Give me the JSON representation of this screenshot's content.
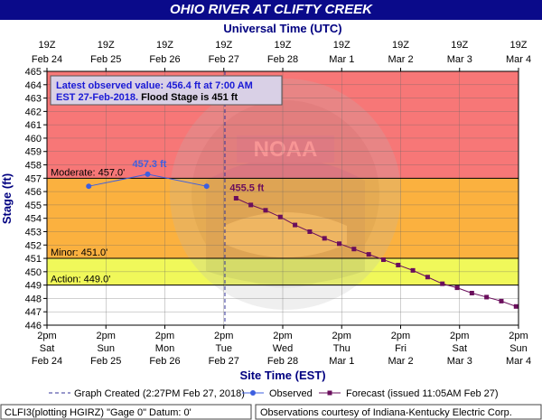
{
  "header": {
    "title": "OHIO RIVER AT CLIFTY CREEK"
  },
  "top_axis": {
    "title": "Universal Time (UTC)",
    "ticks": [
      {
        "time": "19Z",
        "date": "Feb 24"
      },
      {
        "time": "19Z",
        "date": "Feb 25"
      },
      {
        "time": "19Z",
        "date": "Feb 26"
      },
      {
        "time": "19Z",
        "date": "Feb 27"
      },
      {
        "time": "19Z",
        "date": "Feb 28"
      },
      {
        "time": "19Z",
        "date": "Mar 1"
      },
      {
        "time": "19Z",
        "date": "Mar 2"
      },
      {
        "time": "19Z",
        "date": "Mar 3"
      },
      {
        "time": "19Z",
        "date": "Mar 4"
      }
    ]
  },
  "bottom_axis": {
    "title": "Site Time (EST)",
    "ticks": [
      {
        "time": "2pm",
        "day": "Sat",
        "date": "Feb 24"
      },
      {
        "time": "2pm",
        "day": "Sun",
        "date": "Feb 25"
      },
      {
        "time": "2pm",
        "day": "Mon",
        "date": "Feb 26"
      },
      {
        "time": "2pm",
        "day": "Tue",
        "date": "Feb 27"
      },
      {
        "time": "2pm",
        "day": "Wed",
        "date": "Feb 28"
      },
      {
        "time": "2pm",
        "day": "Thu",
        "date": "Mar 1"
      },
      {
        "time": "2pm",
        "day": "Fri",
        "date": "Mar 2"
      },
      {
        "time": "2pm",
        "day": "Sat",
        "date": "Mar 3"
      },
      {
        "time": "2pm",
        "day": "Sun",
        "date": "Mar 4"
      }
    ]
  },
  "info_box": {
    "line1": "Latest observed value: 456.4 ft at 7:00 AM",
    "line2_date": "EST 27-Feb-2018.",
    "line2_flood": " Flood Stage is 451 ft"
  },
  "legend": {
    "graph_created": "Graph Created (2:27PM Feb 27, 2018)",
    "observed": "Observed",
    "forecast": "Forecast (issued 11:05AM Feb 27)"
  },
  "footer": {
    "left": "CLFI3(plotting HGIRZ) \"Gage 0\" Datum: 0'",
    "right": "Observations courtesy of Indiana-Kentucky Electric Corp."
  },
  "colors": {
    "major": "#f77777",
    "moderate": "#fbb13f",
    "minor": "#f5d83a",
    "action": "#f0f85a",
    "normal": "#ffffff",
    "observed": "#3d5fe0",
    "forecast": "#6a0e5c",
    "title_bar": "#0a0a8a",
    "axis_title": "#000080"
  },
  "chart_data": {
    "type": "line",
    "x_axis": "time",
    "ylabel": "Stage (ft)",
    "ylim": [
      446,
      465
    ],
    "y_ticks": [
      446,
      447,
      448,
      449,
      450,
      451,
      452,
      453,
      454,
      455,
      456,
      457,
      458,
      459,
      460,
      461,
      462,
      463,
      464,
      465
    ],
    "xlim": [
      "2018-02-24 14:00 EST",
      "2018-03-04 14:00 EST"
    ],
    "grid": true,
    "graph_created": "2018-02-27 14:27 EST",
    "thresholds": [
      {
        "name": "Moderate",
        "label": "Moderate: 457.0'",
        "value": 457.0
      },
      {
        "name": "Minor",
        "label": "Minor: 451.0'",
        "value": 451.0
      },
      {
        "name": "Action",
        "label": "Action: 449.0'",
        "value": 449.0
      }
    ],
    "series": [
      {
        "name": "Observed",
        "points": [
          {
            "x": "2018-02-25 07:00 EST",
            "y": 456.4
          },
          {
            "x": "2018-02-26 07:00 EST",
            "y": 457.3
          },
          {
            "x": "2018-02-27 07:00 EST",
            "y": 456.4
          }
        ],
        "annotation": {
          "text": "457.3 ft",
          "point_index": 1
        }
      },
      {
        "name": "Forecast",
        "points": [
          {
            "x": "2018-02-27 19:00 EST",
            "y": 455.5
          },
          {
            "x": "2018-02-28 01:00 EST",
            "y": 455.0
          },
          {
            "x": "2018-02-28 07:00 EST",
            "y": 454.6
          },
          {
            "x": "2018-02-28 13:00 EST",
            "y": 454.1
          },
          {
            "x": "2018-02-28 19:00 EST",
            "y": 453.5
          },
          {
            "x": "2018-03-01 01:00 EST",
            "y": 453.0
          },
          {
            "x": "2018-03-01 07:00 EST",
            "y": 452.5
          },
          {
            "x": "2018-03-01 13:00 EST",
            "y": 452.1
          },
          {
            "x": "2018-03-01 19:00 EST",
            "y": 451.7
          },
          {
            "x": "2018-03-02 01:00 EST",
            "y": 451.3
          },
          {
            "x": "2018-03-02 07:00 EST",
            "y": 450.9
          },
          {
            "x": "2018-03-02 13:00 EST",
            "y": 450.5
          },
          {
            "x": "2018-03-02 19:00 EST",
            "y": 450.1
          },
          {
            "x": "2018-03-03 01:00 EST",
            "y": 449.6
          },
          {
            "x": "2018-03-03 07:00 EST",
            "y": 449.1
          },
          {
            "x": "2018-03-03 13:00 EST",
            "y": 448.8
          },
          {
            "x": "2018-03-03 19:00 EST",
            "y": 448.4
          },
          {
            "x": "2018-03-04 01:00 EST",
            "y": 448.1
          },
          {
            "x": "2018-03-04 07:00 EST",
            "y": 447.8
          },
          {
            "x": "2018-03-04 13:00 EST",
            "y": 447.4
          }
        ],
        "annotation": {
          "text": "455.5 ft",
          "point_index": 0
        }
      }
    ]
  }
}
